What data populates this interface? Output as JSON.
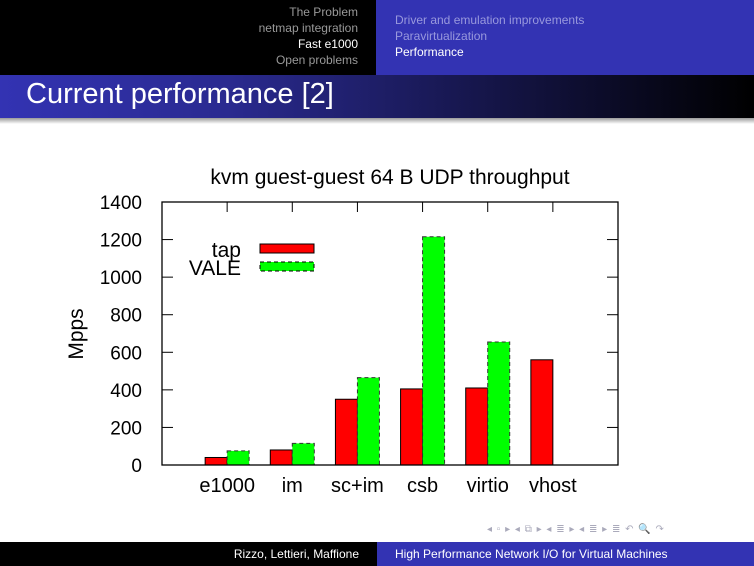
{
  "header": {
    "sections": [
      "The Problem",
      "netmap integration",
      "Fast e1000",
      "Open problems"
    ],
    "active_section": 2,
    "subsections": [
      "Driver and emulation improvements",
      "Paravirtualization",
      "Performance"
    ],
    "active_subsection": 2
  },
  "slide_title": "Current performance [2]",
  "footer": {
    "authors": "Rizzo, Lettieri, Maffione",
    "title": "High Performance Network I/O for Virtual Machines",
    "nav_symbols": "◂ ▫ ▸ ◂ ⧉ ▸ ◂ ≣ ▸ ◂ ≣ ▸   ≣   ↶ 🔍 ↷"
  },
  "chart_data": {
    "type": "bar",
    "title": "kvm guest-guest 64 B UDP throughput",
    "xlabel": "",
    "ylabel": "Mpps",
    "ylim": [
      0,
      1400
    ],
    "yticks": [
      0,
      200,
      400,
      600,
      800,
      1000,
      1200,
      1400
    ],
    "categories": [
      "e1000",
      "im",
      "sc+im",
      "csb",
      "virtio",
      "vhost"
    ],
    "series": [
      {
        "name": "tap",
        "color": "#ff0000",
        "values": [
          40,
          80,
          350,
          405,
          410,
          560
        ]
      },
      {
        "name": "VALE",
        "color": "#00ff00",
        "values": [
          75,
          115,
          465,
          1215,
          655,
          null
        ]
      }
    ],
    "legend_position": "top-left",
    "grid": false
  }
}
